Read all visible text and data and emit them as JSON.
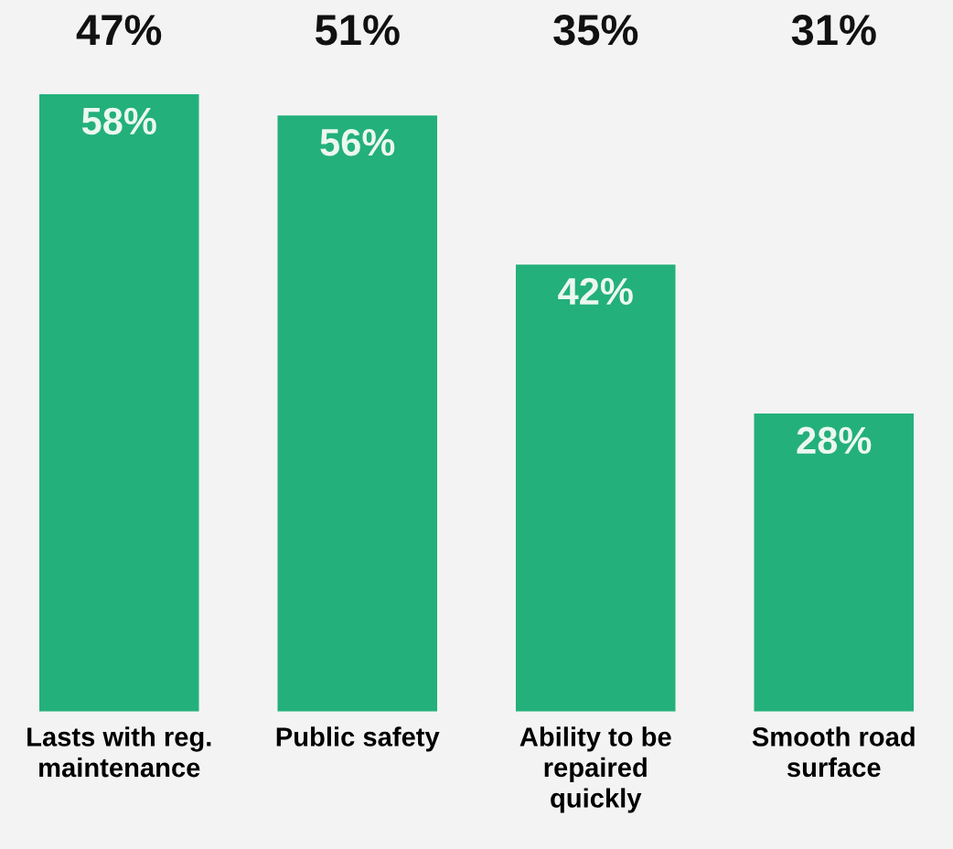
{
  "chart_data": {
    "type": "bar",
    "categories": [
      "Lasts with reg.\nmaintenance",
      "Public safety",
      "Ability to be\nrepaired\nquickly",
      "Smooth road\nsurface"
    ],
    "values": [
      58,
      56,
      42,
      28
    ],
    "value_labels": [
      "58%",
      "56%",
      "42%",
      "28%"
    ],
    "color": "#23b07b",
    "annotations": [
      "47%",
      "51%",
      "35%",
      "31%"
    ]
  }
}
